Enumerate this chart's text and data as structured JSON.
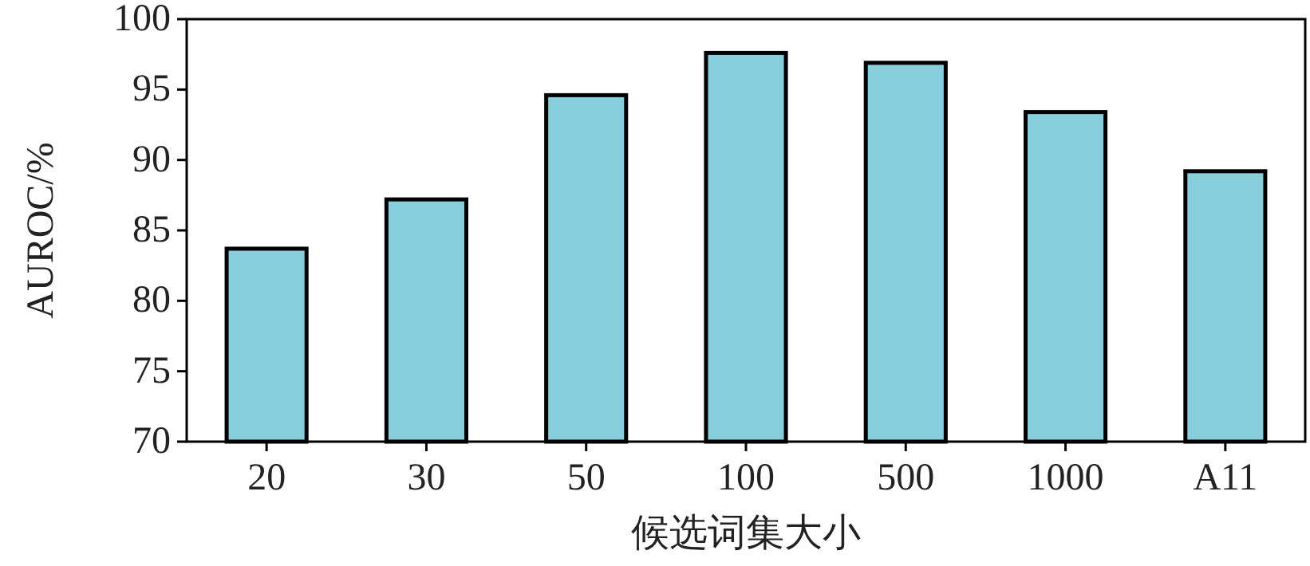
{
  "chart_data": {
    "type": "bar",
    "xlabel": "候选词集大小",
    "ylabel": "AUROC/%",
    "categories": [
      "20",
      "30",
      "50",
      "100",
      "500",
      "1000",
      "A11"
    ],
    "values": [
      83.7,
      87.2,
      94.6,
      97.6,
      96.9,
      93.4,
      89.2
    ],
    "color": "#88cddc",
    "ylim": [
      70,
      100
    ],
    "yticks": [
      70,
      75,
      80,
      85,
      90,
      95,
      100
    ],
    "grid": false
  }
}
